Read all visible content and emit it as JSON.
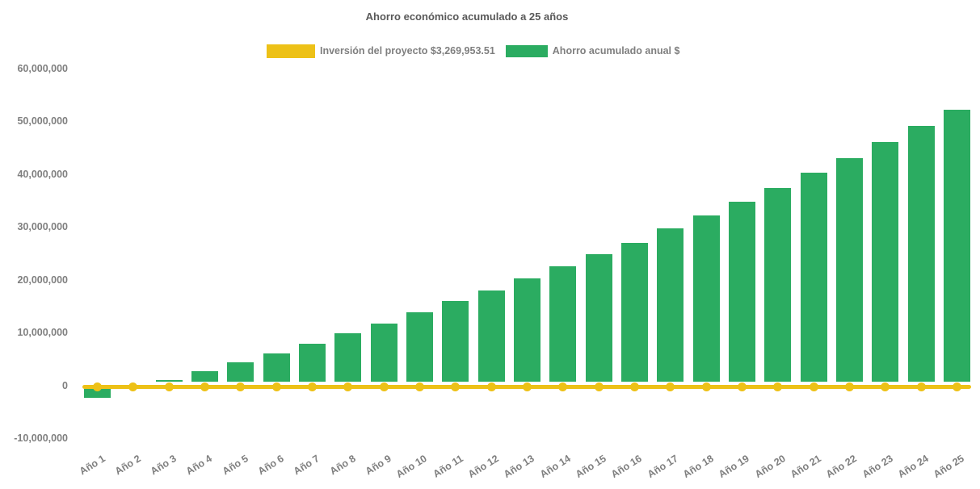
{
  "title": "Ahorro económico acumulado a 25 años",
  "legend": [
    {
      "label": "Inversión del proyecto $3,269,953.51",
      "color": "#EDC117",
      "series_type": "line"
    },
    {
      "label": "Ahorro acumulado anual $",
      "color": "#2BAC61",
      "series_type": "bar"
    }
  ],
  "colors": {
    "bar_green": "#2BAC61",
    "line_yellow": "#EDC117",
    "axis_text": "#7f7f7f",
    "title_text": "#595959",
    "background": "#ffffff"
  },
  "chart_data": {
    "type": "bar",
    "title": "Ahorro económico acumulado a 25 años",
    "categories": [
      "Año 1",
      "Año 2",
      "Año 3",
      "Año 4",
      "Año 5",
      "Año 6",
      "Año 7",
      "Año 8",
      "Año 9",
      "Año 10",
      "Año 11",
      "Año 12",
      "Año 13",
      "Año 14",
      "Año 15",
      "Año 16",
      "Año 17",
      "Año 18",
      "Año 19",
      "Año 20",
      "Año 21",
      "Año 22",
      "Año 23",
      "Año 24",
      "Año 25"
    ],
    "series": [
      {
        "name": "Ahorro acumulado anual $",
        "type": "bar",
        "color": "#2BAC61",
        "values": [
          -2300000,
          -200000,
          1000000,
          2700000,
          4300000,
          6000000,
          7900000,
          9850000,
          11700000,
          13800000,
          15900000,
          18000000,
          20200000,
          22500000,
          24800000,
          27000000,
          29700000,
          32200000,
          34700000,
          37400000,
          40200000,
          43000000,
          46000000,
          49100000,
          52100000
        ]
      },
      {
        "name": "Inversión del proyecto $3,269,953.51",
        "type": "line",
        "color": "#EDC117",
        "amount_label": "$3,269,953.51",
        "amount": 3269953.51,
        "plotted_value": 0,
        "markers": "circle"
      }
    ],
    "xlabel": "",
    "ylabel": "",
    "ylim": [
      -10000000,
      60000000
    ],
    "yticks": [
      {
        "label": "60,000,000",
        "value": 60000000
      },
      {
        "label": "50,000,000",
        "value": 50000000
      },
      {
        "label": "40,000,000",
        "value": 40000000
      },
      {
        "label": "30,000,000",
        "value": 30000000
      },
      {
        "label": "20,000,000",
        "value": 20000000
      },
      {
        "label": "10,000,000",
        "value": 10000000
      },
      {
        "label": "0",
        "value": 0
      },
      {
        "label": "-10,000,000",
        "value": -10000000
      }
    ],
    "grid": false,
    "legend_position": "top"
  }
}
